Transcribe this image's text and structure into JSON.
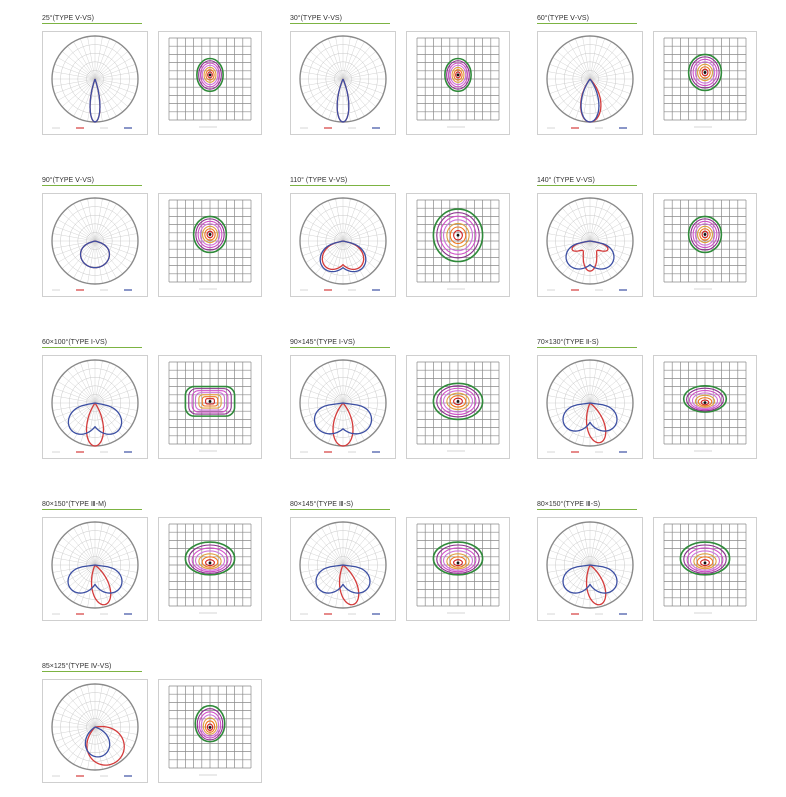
{
  "colors": {
    "c0": "#3c4fa3",
    "c90": "#d43b3b",
    "grid": "#c8c8c8",
    "rim": "#8a8a8a",
    "iso": [
      "#2f8a3a",
      "#8b2e8c",
      "#d04fc8",
      "#cf73d9",
      "#e0a040",
      "#f07820",
      "#d02020"
    ]
  },
  "panels": [
    {
      "title": "25°(TYPE Ⅴ-VS)",
      "polar": "narrow-25",
      "iso": "round-small"
    },
    {
      "title": "30°(TYPE Ⅴ-VS)",
      "polar": "narrow-30",
      "iso": "round-small"
    },
    {
      "title": "60°(TYPE Ⅴ-VS)",
      "polar": "medium-60",
      "iso": "round-medium"
    },
    {
      "title": "90°(TYPE Ⅴ-VS)",
      "polar": "wide-90",
      "iso": "round-medium"
    },
    {
      "title": "110° (TYPE Ⅴ-VS)",
      "polar": "wide-110",
      "iso": "round-large"
    },
    {
      "title": "140° (TYPE Ⅴ-VS)",
      "polar": "bat-140",
      "iso": "round-medium"
    },
    {
      "title": "60×100°(TYPE Ⅰ-VS)",
      "polar": "asym-60x100",
      "iso": "rect-wide"
    },
    {
      "title": "90×145°(TYPE Ⅰ-VS)",
      "polar": "asym-90x145",
      "iso": "oval-wide"
    },
    {
      "title": "70×130°(TYPE Ⅱ-S)",
      "polar": "side-70x130",
      "iso": "oval-offset"
    },
    {
      "title": "80×150°(TYPE Ⅲ-M)",
      "polar": "side-80x150",
      "iso": "oval-offset-large"
    },
    {
      "title": "80×145°(TYPE Ⅲ-S)",
      "polar": "side-80x145",
      "iso": "oval-offset-large"
    },
    {
      "title": "80×150°(TYPE Ⅲ-S)",
      "polar": "side-80x150b",
      "iso": "oval-offset-large"
    },
    {
      "title": "85×125°(TYPE Ⅳ-VS)",
      "polar": "fwd-85x125",
      "iso": "round-forward"
    }
  ]
}
